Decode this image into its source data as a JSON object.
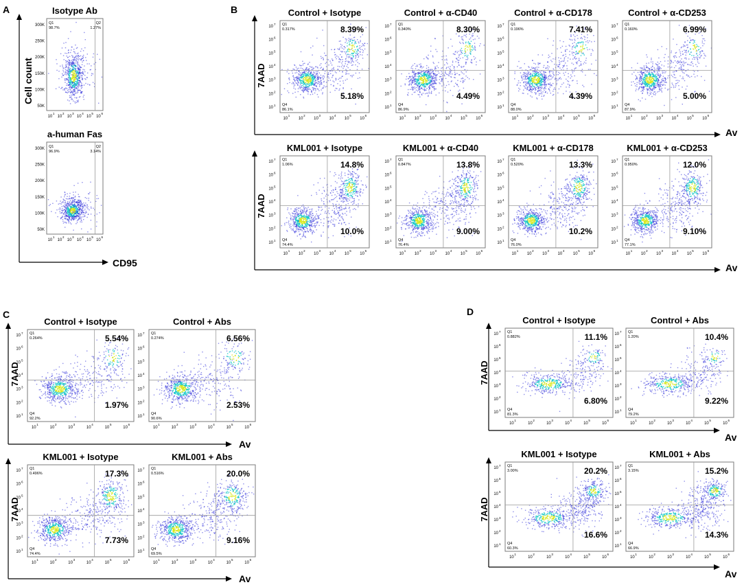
{
  "figure": {
    "panels": [
      {
        "letter": "A",
        "x_axis_label": "CD95",
        "y_axis_label": "Cell count",
        "plots": [
          {
            "title": "Isotype Ab",
            "q1": "Q1",
            "q1_pct": "98.7%",
            "q2": "Q2",
            "q2_pct": "1.27%"
          },
          {
            "title": "a-human Fas",
            "q1": "Q1",
            "q1_pct": "96.9%",
            "q2": "Q2",
            "q2_pct": "3.14%"
          }
        ]
      },
      {
        "letter": "B",
        "x_axis_label": "Av",
        "y_axis_label": "7AAD",
        "plots": [
          {
            "title": "Control + Isotype",
            "q1": "Q1",
            "q1_pct": "0.317%",
            "q4": "Q4",
            "q4_pct": "86.1%",
            "ur": "8.39%",
            "lr": "5.18%"
          },
          {
            "title": "Control + α-CD40",
            "q1": "Q1",
            "q1_pct": "0.340%",
            "q4": "Q4",
            "q4_pct": "86.9%",
            "ur": "8.30%",
            "lr": "4.49%"
          },
          {
            "title": "Control + α-CD178",
            "q1": "Q1",
            "q1_pct": "0.196%",
            "q4": "Q4",
            "q4_pct": "88.0%",
            "ur": "7.41%",
            "lr": "4.39%"
          },
          {
            "title": "Control + α-CD253",
            "q1": "Q1",
            "q1_pct": "0.160%",
            "q4": "Q4",
            "q4_pct": "87.9%",
            "ur": "6.99%",
            "lr": "5.00%"
          },
          {
            "title": "KML001 + Isotype",
            "q1": "Q1",
            "q1_pct": "1.06%",
            "q4": "Q4",
            "q4_pct": "74.4%",
            "ur": "14.8%",
            "lr": "10.0%"
          },
          {
            "title": "KML001 + α-CD40",
            "q1": "Q1",
            "q1_pct": "0.847%",
            "q4": "Q4",
            "q4_pct": "76.4%",
            "ur": "13.8%",
            "lr": "9.00%"
          },
          {
            "title": "KML001 + α-CD178",
            "q1": "Q1",
            "q1_pct": "0.520%",
            "q4": "Q4",
            "q4_pct": "76.0%",
            "ur": "13.3%",
            "lr": "10.2%"
          },
          {
            "title": "KML001 + α-CD253",
            "q1": "Q1",
            "q1_pct": "0.950%",
            "q4": "Q4",
            "q4_pct": "77.1%",
            "ur": "12.0%",
            "lr": "9.10%"
          }
        ]
      },
      {
        "letter": "C",
        "x_axis_label": "Av",
        "y_axis_label": "7AAD",
        "plots": [
          {
            "title": "Control + Isotype",
            "q1": "Q1",
            "q1_pct": "0.264%",
            "q4": "Q4",
            "q4_pct": "92.2%",
            "ur": "5.54%",
            "lr": "1.97%"
          },
          {
            "title": "Control + Abs",
            "q1": "Q1",
            "q1_pct": "0.274%",
            "q4": "Q4",
            "q4_pct": "90.6%",
            "ur": "6.56%",
            "lr": "2.53%"
          },
          {
            "title": "KML001 + Isotype",
            "q1": "Q1",
            "q1_pct": "0.496%",
            "q4": "Q4",
            "q4_pct": "74.4%",
            "ur": "17.3%",
            "lr": "7.73%"
          },
          {
            "title": "KML001 + Abs",
            "q1": "Q1",
            "q1_pct": "0.516%",
            "q4": "Q4",
            "q4_pct": "69.5%",
            "ur": "20.0%",
            "lr": "9.16%"
          }
        ]
      },
      {
        "letter": "D",
        "x_axis_label": "Av",
        "y_axis_label": "7AAD",
        "plots": [
          {
            "title": "Control + Isotype",
            "q1": "Q1",
            "q1_pct": "0.882%",
            "q4": "Q4",
            "q4_pct": "81.3%",
            "ur": "11.1%",
            "lr": "6.80%"
          },
          {
            "title": "Control + Abs",
            "q1": "Q1",
            "q1_pct": "1.20%",
            "q4": "Q4",
            "q4_pct": "79.2%",
            "ur": "10.4%",
            "lr": "9.22%"
          },
          {
            "title": "KML001 + Isotype",
            "q1": "Q1",
            "q1_pct": "3.00%",
            "q4": "Q4",
            "q4_pct": "60.3%",
            "ur": "20.2%",
            "lr": "16.6%"
          },
          {
            "title": "KML001 + Abs",
            "q1": "Q1",
            "q1_pct": "3.15%",
            "q4": "Q4",
            "q4_pct": "66.9%",
            "ur": "15.2%",
            "lr": "14.3%"
          }
        ]
      }
    ],
    "axis_ticks": {
      "log_x": [
        "10",
        "10",
        "10",
        "10",
        "10",
        "10"
      ],
      "log_x_exp": [
        "1",
        "2",
        "3",
        "4",
        "5",
        "6"
      ],
      "log_y": [
        "10",
        "10",
        "10",
        "10",
        "10",
        "10",
        "10"
      ],
      "log_y_exp": [
        "1",
        "2",
        "3",
        "4",
        "5",
        "6",
        "7"
      ],
      "count_y": [
        "300K",
        "250K",
        "200K",
        "150K",
        "100K",
        "50K"
      ]
    },
    "colors": {
      "background": "#ffffff",
      "axis": "#000000",
      "gate": "#9a9a9a",
      "density_low": "#2b2bd8",
      "density_mid": "#14c8c8",
      "density_high": "#d8e818"
    }
  }
}
